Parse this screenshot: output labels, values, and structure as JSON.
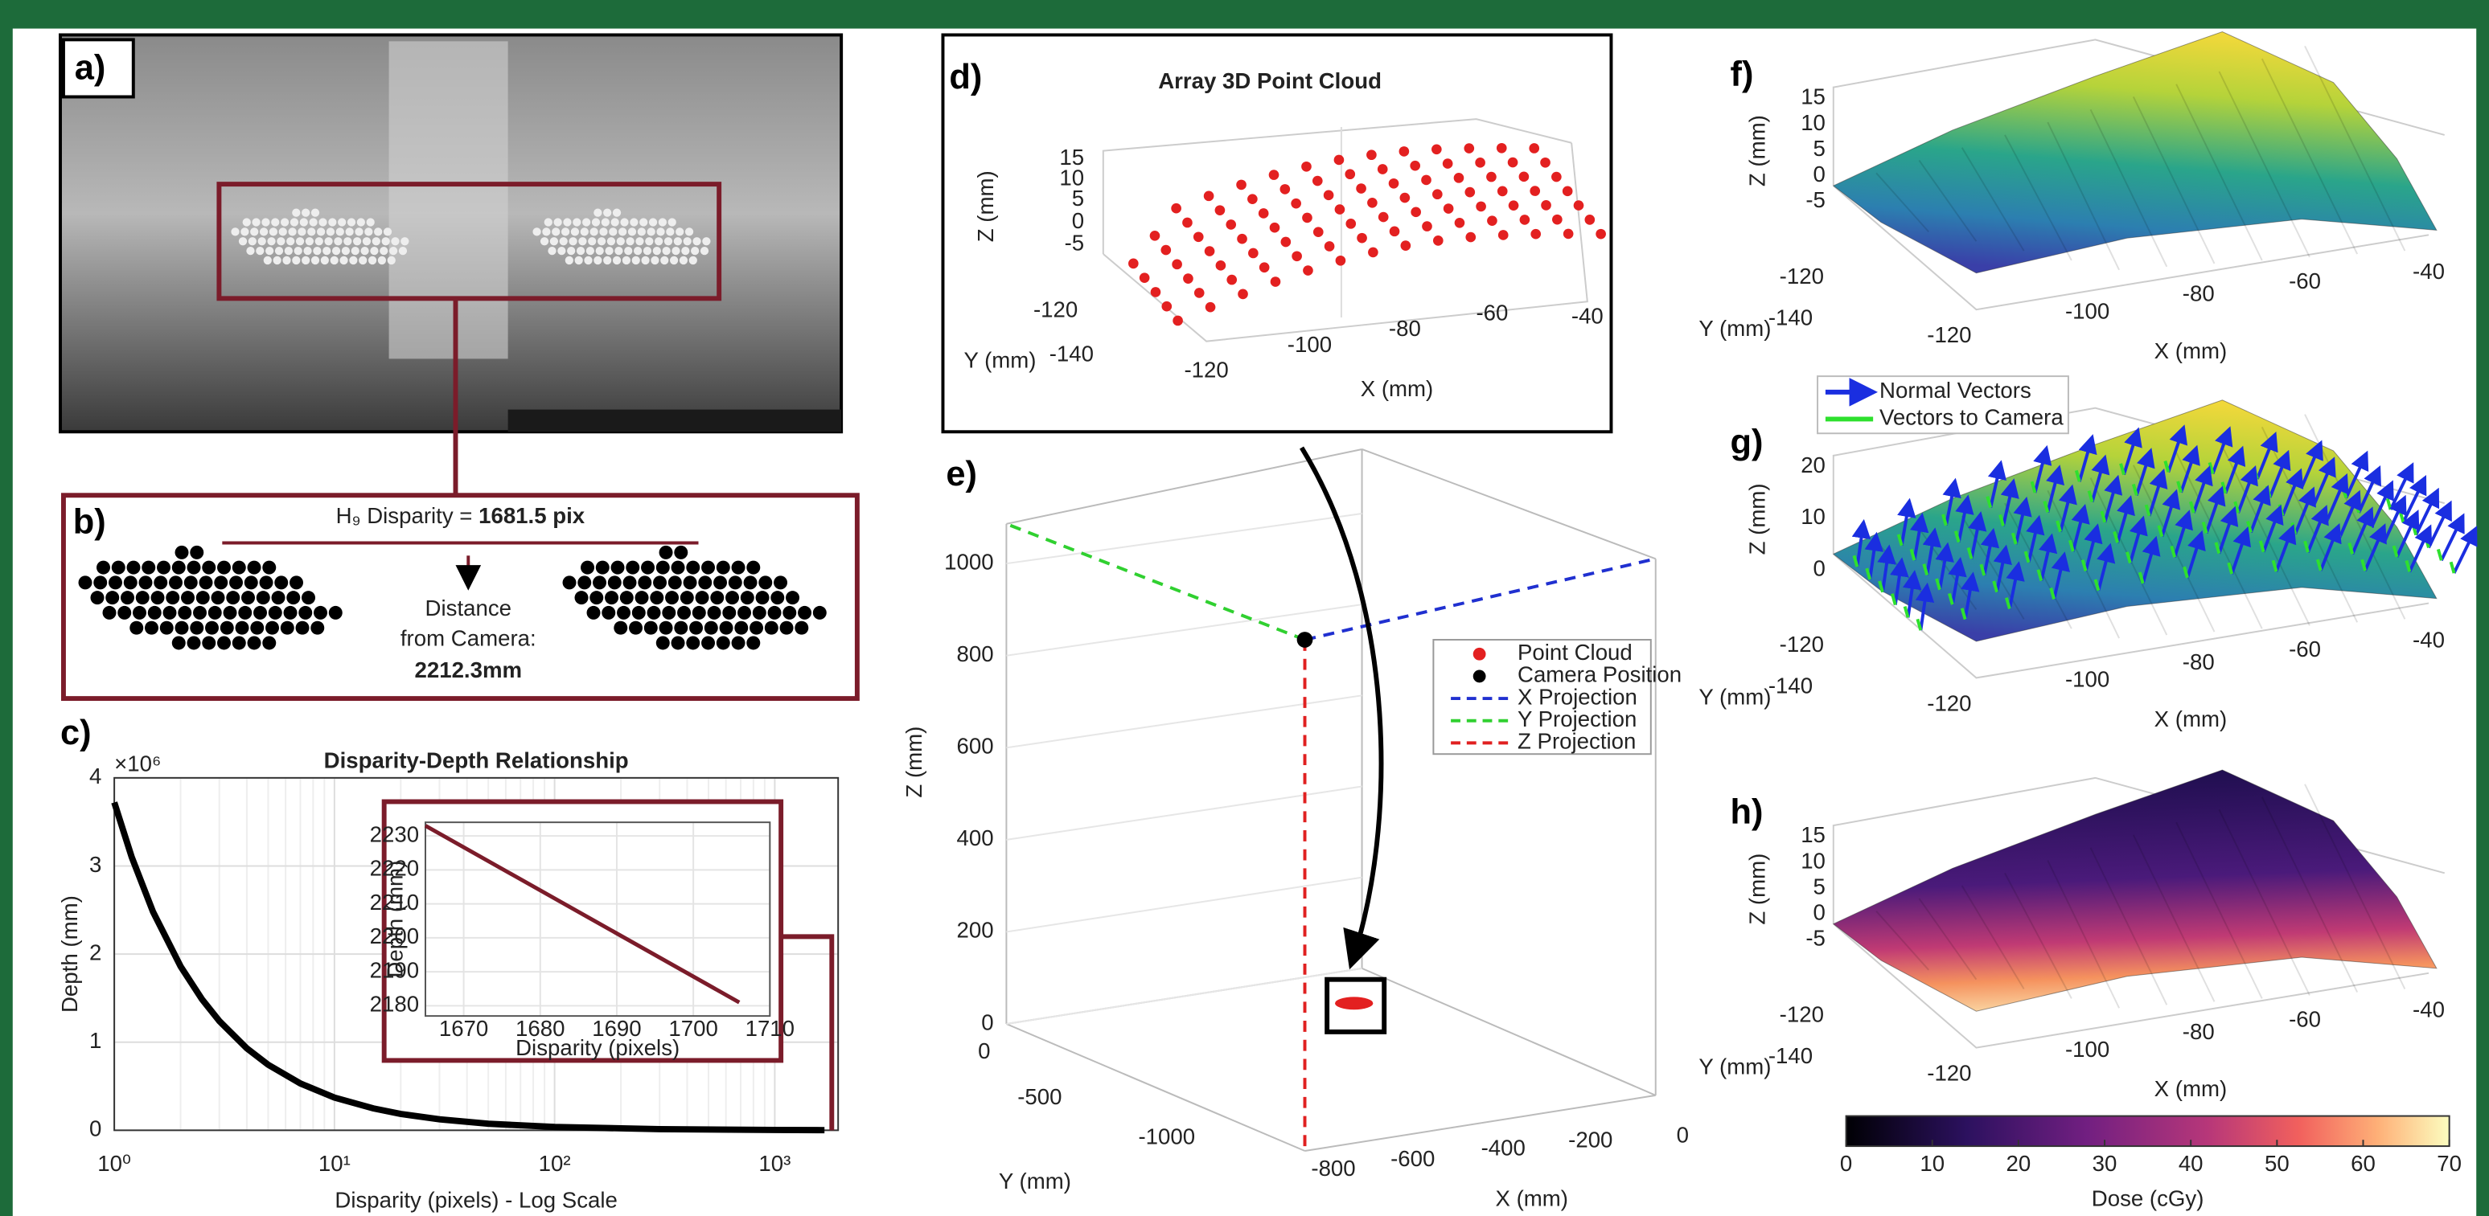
{
  "panels": {
    "a": {
      "label": "a)"
    },
    "b": {
      "label": "b)",
      "disparity_label": "H₉ Disparity = ",
      "disparity_value": "1681.5 pix",
      "distance_lines": [
        "Distance",
        "from Camera:"
      ],
      "distance_value": "2212.3mm"
    },
    "c": {
      "label": "c)",
      "type": "line",
      "title": "Disparity-Depth Relationship",
      "x_label": "Disparity (pixels) - Log Scale",
      "y_label": "Depth (mm)",
      "y_multiplier": "×10⁶",
      "xscale": "log",
      "grid": true,
      "color": "#000000",
      "x": [
        1,
        1.2,
        1.5,
        2,
        2.5,
        3,
        4,
        5,
        7,
        10,
        15,
        20,
        30,
        50,
        100,
        300,
        1000,
        1681.5
      ],
      "values": [
        3.72,
        3.1,
        2.48,
        1.86,
        1.488,
        1.24,
        0.93,
        0.744,
        0.531,
        0.372,
        0.248,
        0.186,
        0.124,
        0.0744,
        0.0372,
        0.0124,
        0.00372,
        0.00221
      ],
      "xlim": [
        1,
        1940
      ],
      "ylim": [
        0,
        4
      ],
      "xticks": [
        {
          "value": 1,
          "label": "10⁰"
        },
        {
          "value": 10,
          "label": "10¹"
        },
        {
          "value": 100,
          "label": "10²"
        },
        {
          "value": 1000,
          "label": "10³"
        }
      ],
      "yticks": [
        0,
        1,
        2,
        3,
        4
      ],
      "inset": {
        "x": [
          1665,
          1706
        ],
        "values": [
          2233,
          2181
        ],
        "color": "#7b1c2a",
        "x_label": "Disparity (pixels)",
        "y_label": "Depth (mm)",
        "xlim": [
          1665,
          1710
        ],
        "ylim": [
          2177,
          2234
        ],
        "xticks": [
          1670,
          1680,
          1690,
          1700,
          1710
        ],
        "yticks": [
          2180,
          2190,
          2200,
          2210,
          2220,
          2230
        ],
        "grid": true
      }
    },
    "d": {
      "label": "d)",
      "title": "Array 3D Point Cloud",
      "x_label": "X (mm)",
      "y_label": "Y (mm)",
      "z_label": "Z (mm)",
      "xticks": [
        -120,
        -100,
        -80,
        -60,
        -40
      ],
      "yticks": [
        -120,
        -140
      ],
      "zticks": [
        15,
        10,
        5,
        0,
        -5
      ]
    },
    "e": {
      "label": "e)",
      "x_label": "X (mm)",
      "y_label": "Y (mm)",
      "z_label": "Z (mm)",
      "xticks": [
        -800,
        -600,
        -400,
        -200,
        0
      ],
      "yticks": [
        0,
        -500,
        -1000
      ],
      "zticks": [
        0,
        200,
        400,
        600,
        800,
        1000
      ],
      "zlim": [
        0,
        1000
      ],
      "legend": [
        {
          "name": "Point Cloud",
          "color": "#e32020",
          "style": "dot"
        },
        {
          "name": "Camera Position",
          "color": "#000000",
          "style": "dot"
        },
        {
          "name": "X Projection",
          "color": "#2030d0",
          "style": "dash"
        },
        {
          "name": "Y Projection",
          "color": "#30d030",
          "style": "dash"
        },
        {
          "name": "Z Projection",
          "color": "#e02020",
          "style": "dash"
        }
      ]
    },
    "f": {
      "label": "f)",
      "x_label": "X (mm)",
      "y_label": "Y (mm)",
      "z_label": "Z (mm)",
      "xticks": [
        -120,
        -100,
        -80,
        -60,
        -40
      ],
      "yticks": [
        -120,
        -140
      ],
      "zticks": [
        15,
        10,
        5,
        0,
        -5
      ]
    },
    "g": {
      "label": "g)",
      "x_label": "X (mm)",
      "y_label": "Y (mm)",
      "z_label": "Z (mm)",
      "xticks": [
        -120,
        -100,
        -80,
        -60,
        -40
      ],
      "yticks": [
        -120,
        -140
      ],
      "zticks": [
        20,
        10,
        0
      ],
      "legend": [
        {
          "name": "Normal Vectors",
          "color": "#1a2ee0"
        },
        {
          "name": "Vectors to Camera",
          "color": "#2ee02e"
        }
      ]
    },
    "h": {
      "label": "h)",
      "x_label": "X (mm)",
      "y_label": "Y (mm)",
      "z_label": "Z (mm)",
      "xticks": [
        -120,
        -100,
        -80,
        -60,
        -40
      ],
      "yticks": [
        -120,
        -140
      ],
      "zticks": [
        15,
        10,
        5,
        0,
        -5
      ],
      "colorbar": {
        "label": "Dose (cGy)",
        "clim": [
          0,
          70
        ],
        "ticks": [
          0,
          10,
          20,
          30,
          40,
          50,
          60,
          70
        ]
      }
    }
  }
}
